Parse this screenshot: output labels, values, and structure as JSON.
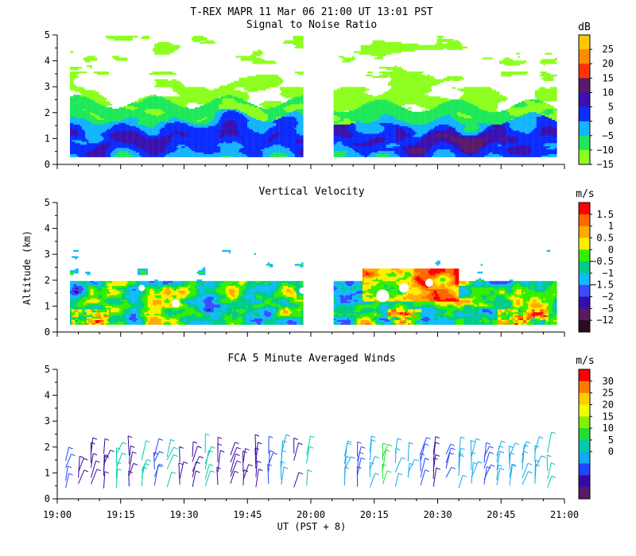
{
  "header": {
    "title": "T-REX   MAPR 11 Mar 06   21:00 UT   13:01   PST"
  },
  "x_axis": {
    "ticks": [
      "19:00",
      "19:15",
      "19:30",
      "19:45",
      "20:00",
      "20:15",
      "20:30",
      "20:45",
      "21:00"
    ],
    "label": "UT  (PST + 8)",
    "range_minutes": [
      0,
      120
    ]
  },
  "y_axis": {
    "label": "Altitude (km)",
    "ticks": [
      "0",
      "1",
      "2",
      "3",
      "4",
      "5"
    ],
    "range": [
      0,
      5
    ]
  },
  "chart_data": [
    {
      "type": "heatmap",
      "title": "Signal to Noise Ratio",
      "unit": "dB",
      "colorbar_labels": [
        "25",
        "20",
        "15",
        "10",
        "5",
        "0",
        "−5",
        "−10",
        "−15"
      ],
      "colors": [
        "#ffc800",
        "#ff8c00",
        "#ff3300",
        "#5a1a6a",
        "#3a10b0",
        "#0a2cff",
        "#14b4ff",
        "#1ee85a",
        "#8cff1e"
      ],
      "data_gap_minutes": [
        58,
        65
      ],
      "coverage_km": [
        0.3,
        5.0
      ]
    },
    {
      "type": "heatmap",
      "title": "Vertical Velocity",
      "unit": "m/s",
      "colorbar_labels": [
        "1.5",
        "1",
        "0.5",
        "0",
        "−0.5",
        "−1",
        "−1.5",
        "−2",
        "−5",
        "−12"
      ],
      "colors": [
        "#ff0000",
        "#ff6600",
        "#ffaa00",
        "#ffee00",
        "#33ee00",
        "#00cc88",
        "#11bbff",
        "#3a4aff",
        "#3010a8",
        "#5a1a60",
        "#2a0a20"
      ],
      "data_gap_minutes": [
        58,
        65
      ],
      "coverage_km": [
        0.3,
        3.2
      ]
    },
    {
      "type": "scatter",
      "title": "FCA 5 Minute Averaged Winds",
      "unit": "m/s",
      "colorbar_labels": [
        "30",
        "25",
        "20",
        "15",
        "10",
        "5",
        "0"
      ],
      "colors": [
        "#ff0000",
        "#ff7a00",
        "#ffcc00",
        "#eeff00",
        "#88ee00",
        "#22dd33",
        "#00ccaa",
        "#11aaee",
        "#2244ff",
        "#3a0aa0",
        "#5a1a6a"
      ],
      "data_gap_minutes": [
        58,
        65
      ],
      "times_minutes": [
        2,
        5,
        8,
        11,
        14,
        17,
        20,
        23,
        26,
        29,
        32,
        35,
        38,
        41,
        44,
        47,
        50,
        53,
        56,
        59,
        68,
        71,
        74,
        77,
        80,
        83,
        86,
        89,
        92,
        95,
        98,
        101,
        104,
        107,
        110,
        113,
        116
      ],
      "speeds_ms": [
        5,
        3,
        4,
        3,
        12,
        4,
        13,
        5,
        13,
        4,
        3,
        13,
        4,
        3,
        4,
        3,
        5,
        10,
        4,
        13,
        8,
        7,
        10,
        15,
        10,
        9,
        7,
        4,
        5,
        10,
        8,
        6,
        9,
        10,
        8,
        9,
        11
      ],
      "altitudes_km": [
        0.5,
        0.8,
        1.1,
        1.4,
        1.7
      ]
    }
  ]
}
